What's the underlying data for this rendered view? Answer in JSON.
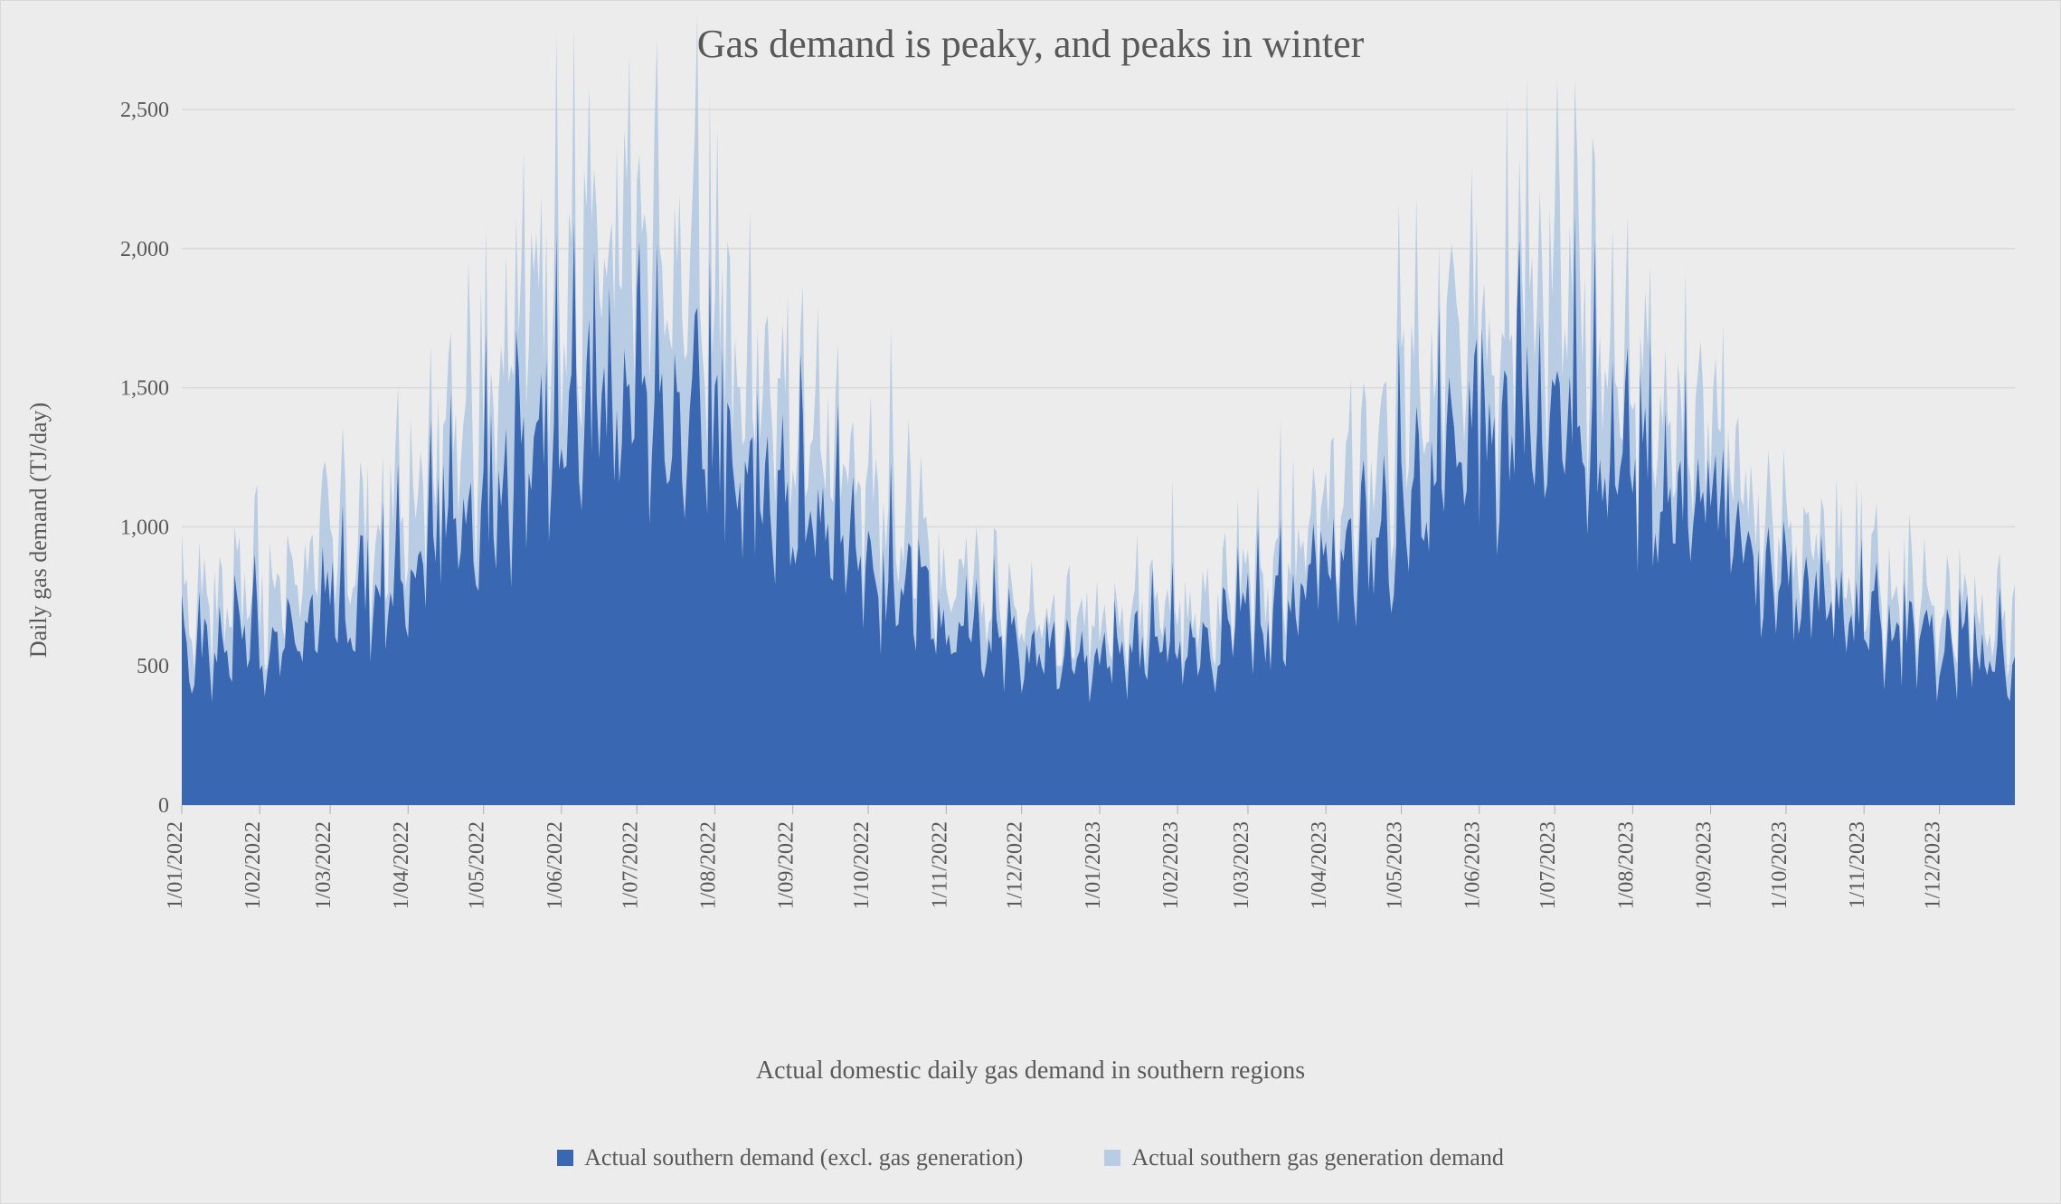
{
  "chart": {
    "type": "area-stacked",
    "title": "Gas demand is peaky, and peaks in winter",
    "title_fontsize": 44,
    "y_axis": {
      "label": "Daily gas demand (TJ/day)",
      "min": 0,
      "max": 2500,
      "tick_step": 500,
      "ticks": [
        0,
        500,
        1000,
        1500,
        2000,
        2500
      ],
      "tick_labels": [
        "0",
        "500",
        "1,000",
        "1,500",
        "2,000",
        "2,500"
      ],
      "label_fontsize": 26,
      "tick_fontsize": 24
    },
    "x_axis": {
      "label": "Actual domestic daily gas demand in southern regions",
      "label_fontsize": 28,
      "tick_fontsize": 24,
      "tick_labels": [
        "1/01/2022",
        "1/02/2022",
        "1/03/2022",
        "1/04/2022",
        "1/05/2022",
        "1/06/2022",
        "1/07/2022",
        "1/08/2022",
        "1/09/2022",
        "1/10/2022",
        "1/11/2022",
        "1/12/2022",
        "1/01/2023",
        "1/02/2023",
        "1/03/2023",
        "1/04/2023",
        "1/05/2023",
        "1/06/2023",
        "1/07/2023",
        "1/08/2023",
        "1/09/2023",
        "1/10/2023",
        "1/11/2023",
        "1/12/2023"
      ],
      "tick_positions_days": [
        0,
        31,
        59,
        90,
        120,
        151,
        181,
        212,
        243,
        273,
        304,
        334,
        365,
        396,
        424,
        455,
        485,
        516,
        546,
        577,
        608,
        638,
        669,
        699
      ],
      "domain_days": [
        0,
        729
      ]
    },
    "background_color": "#ececec",
    "grid_color": "#d9d9d9",
    "series": [
      {
        "name": "Actual southern demand (excl. gas generation)",
        "color": "#3a67b1",
        "monthly_baseline": [
          520,
          600,
          680,
          820,
          1100,
          1350,
          1450,
          1350,
          1100,
          850,
          680,
          520,
          520,
          580,
          640,
          820,
          1100,
          1350,
          1400,
          1250,
          1000,
          820,
          680,
          560,
          500
        ],
        "noise_amplitude": 0.28
      },
      {
        "name": "Actual southern gas generation demand",
        "color": "#b8cce4",
        "monthly_baseline": [
          150,
          180,
          200,
          260,
          380,
          520,
          560,
          420,
          300,
          220,
          160,
          120,
          110,
          130,
          150,
          200,
          300,
          420,
          440,
          330,
          240,
          180,
          150,
          120,
          110
        ],
        "noise_amplitude": 0.55
      }
    ],
    "legend": {
      "items": [
        {
          "label": "Actual southern demand (excl. gas generation)",
          "color": "#3a67b1"
        },
        {
          "label": "Actual southern gas generation demand",
          "color": "#b8cce4"
        }
      ],
      "fontsize": 26
    },
    "noise_seed": 20220101,
    "n_days": 730
  }
}
